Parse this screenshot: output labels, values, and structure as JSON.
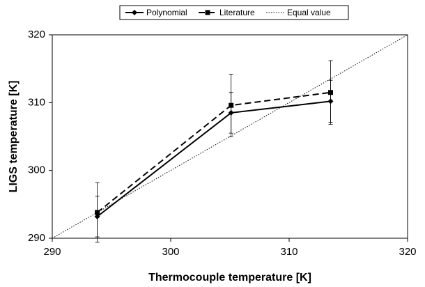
{
  "chart_data": {
    "type": "line",
    "x_label": "Thermocouple temperature [K]",
    "y_label": "LIGS temperature [K]",
    "xlim": [
      290,
      320
    ],
    "xticks": [
      290,
      300,
      310,
      320
    ],
    "ylim": [
      290,
      320
    ],
    "yticks": [
      290,
      300,
      310,
      320
    ],
    "grid": false,
    "legend": "top",
    "series": [
      {
        "name": "Polynomial",
        "color": "#000000",
        "dash": "solid",
        "marker": "diamond",
        "x": [
          293.8,
          305.1,
          313.5
        ],
        "values": [
          293.2,
          308.5,
          310.2
        ],
        "errors": [
          3,
          3,
          3.1
        ]
      },
      {
        "name": "Literature",
        "color": "#000000",
        "dash": "dashed",
        "marker": "square",
        "x": [
          293.8,
          305.1,
          313.5
        ],
        "values": [
          293.8,
          309.6,
          311.5
        ],
        "errors": [
          4.4,
          4.6,
          4.7
        ]
      },
      {
        "name": "Equal value",
        "color": "#000000",
        "dash": "dotted",
        "marker": "none",
        "x": [
          290,
          320
        ],
        "values": [
          290,
          320
        ]
      }
    ]
  }
}
